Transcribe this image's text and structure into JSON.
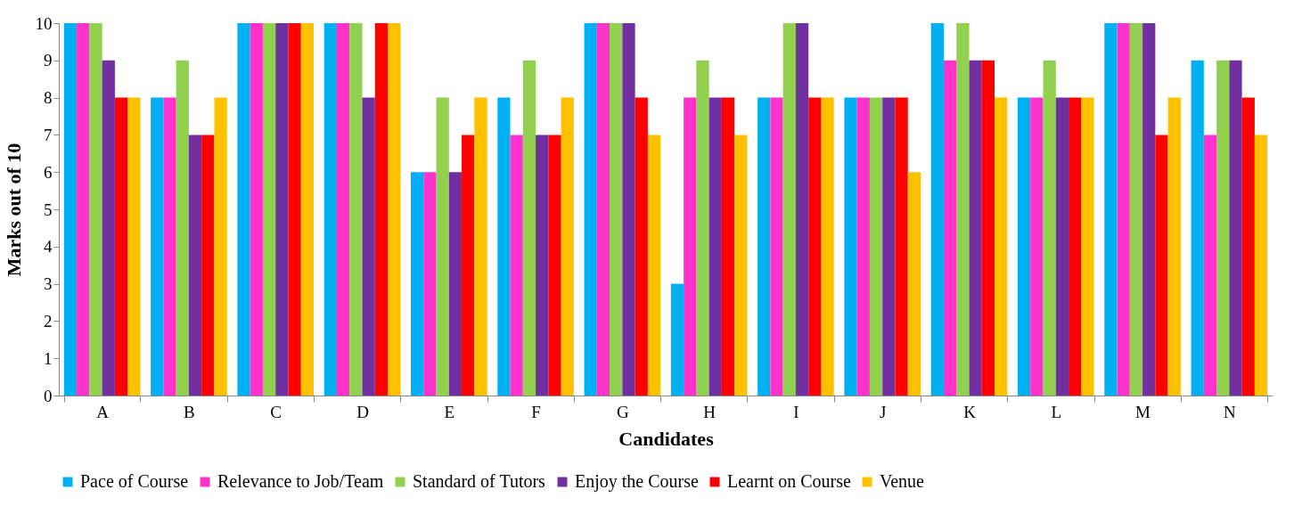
{
  "chart_data": {
    "type": "bar",
    "xlabel": "Candidates",
    "ylabel": "Marks out of 10",
    "categories": [
      "A",
      "B",
      "C",
      "D",
      "E",
      "F",
      "G",
      "H",
      "I",
      "J",
      "K",
      "L",
      "M",
      "N"
    ],
    "series": [
      {
        "name": "Pace of Course",
        "color": "#00b0f0",
        "values": [
          10,
          8,
          10,
          10,
          6,
          8,
          10,
          3,
          8,
          8,
          10,
          8,
          10,
          9
        ]
      },
      {
        "name": "Relevance to Job/Team",
        "color": "#ff33cc",
        "values": [
          10,
          8,
          10,
          10,
          6,
          7,
          10,
          8,
          8,
          8,
          9,
          8,
          10,
          7
        ]
      },
      {
        "name": "Standard of Tutors",
        "color": "#92d050",
        "values": [
          10,
          9,
          10,
          10,
          8,
          9,
          10,
          9,
          10,
          8,
          10,
          9,
          10,
          9
        ]
      },
      {
        "name": "Enjoy the Course",
        "color": "#7030a0",
        "values": [
          9,
          7,
          10,
          8,
          6,
          7,
          10,
          8,
          10,
          8,
          9,
          8,
          10,
          9
        ]
      },
      {
        "name": "Learnt on Course",
        "color": "#ff0000",
        "values": [
          8,
          7,
          10,
          10,
          7,
          7,
          8,
          8,
          8,
          8,
          9,
          8,
          7,
          8
        ]
      },
      {
        "name": "Venue",
        "color": "#ffc000",
        "values": [
          8,
          8,
          10,
          10,
          8,
          8,
          7,
          7,
          8,
          6,
          8,
          8,
          8,
          7
        ]
      }
    ],
    "ylim": [
      0,
      10
    ],
    "yticks": [
      0,
      1,
      2,
      3,
      4,
      5,
      6,
      7,
      8,
      9,
      10
    ],
    "grid": false,
    "legend": "bottom"
  }
}
